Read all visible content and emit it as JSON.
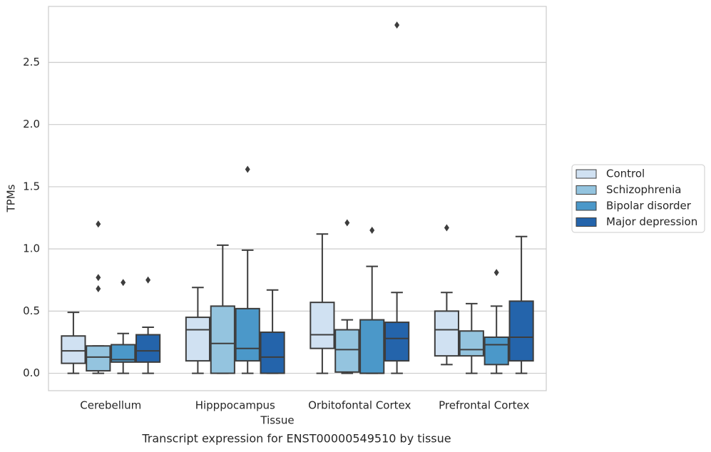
{
  "chart_data": {
    "type": "box",
    "caption": "Transcript expression for ENST00000549510 by tissue",
    "xlabel": "Tissue",
    "ylabel": "TPMs",
    "categories": [
      "Cerebellum",
      "Hipppocampus",
      "Orbitofontal Cortex",
      "Prefrontal Cortex"
    ],
    "ylim": [
      -0.14,
      2.95
    ],
    "yticks": [
      {
        "value": 0,
        "label": "0.0"
      },
      0.5,
      {
        "value": 1,
        "label": "1.0"
      },
      1.5,
      {
        "value": 2,
        "label": "2.0"
      },
      2.5
    ],
    "grid": true,
    "legend": "right",
    "series": [
      {
        "name": "Control",
        "color": "#d0e1f2",
        "low": [
          0,
          0,
          0,
          0.07
        ],
        "q1": [
          0.08,
          0.1,
          0.2,
          0.14
        ],
        "median": [
          0.18,
          0.35,
          0.31,
          0.35
        ],
        "q3": [
          0.3,
          0.45,
          0.57,
          0.5
        ],
        "high": [
          0.49,
          0.69,
          1.12,
          0.65
        ],
        "outliers": [
          [],
          [],
          [],
          [
            1.17
          ]
        ]
      },
      {
        "name": "Schizophrenia",
        "color": "#94c4df",
        "low": [
          0,
          0,
          0,
          0
        ],
        "q1": [
          0.02,
          0,
          0.01,
          0.14
        ],
        "median": [
          0.13,
          0.24,
          0.19,
          0.19
        ],
        "q3": [
          0.22,
          0.54,
          0.35,
          0.34
        ],
        "high": [
          0.22,
          1.03,
          0.43,
          0.56
        ],
        "outliers": [
          [
            1.2,
            0.77,
            0.68
          ],
          [],
          [
            1.21
          ],
          []
        ]
      },
      {
        "name": "Bipolar disorder",
        "color": "#4b98c9",
        "low": [
          0,
          0,
          0,
          0
        ],
        "q1": [
          0.09,
          0.1,
          0,
          0.07
        ],
        "median": [
          0.11,
          0.2,
          0,
          0.23
        ],
        "q3": [
          0.23,
          0.52,
          0.43,
          0.29
        ],
        "high": [
          0.32,
          0.99,
          0.86,
          0.54
        ],
        "outliers": [
          [
            0.73
          ],
          [
            1.64
          ],
          [
            1.15
          ],
          [
            0.81
          ]
        ]
      },
      {
        "name": "Major depression",
        "color": "#2464ab",
        "low": [
          0,
          0,
          0,
          0
        ],
        "q1": [
          0.09,
          0,
          0.1,
          0.1
        ],
        "median": [
          0.18,
          0.13,
          0.28,
          0.29
        ],
        "q3": [
          0.31,
          0.33,
          0.41,
          0.58
        ],
        "high": [
          0.37,
          0.67,
          0.65,
          1.1
        ],
        "outliers": [
          [
            0.75
          ],
          [],
          [
            2.8
          ],
          []
        ]
      }
    ]
  }
}
